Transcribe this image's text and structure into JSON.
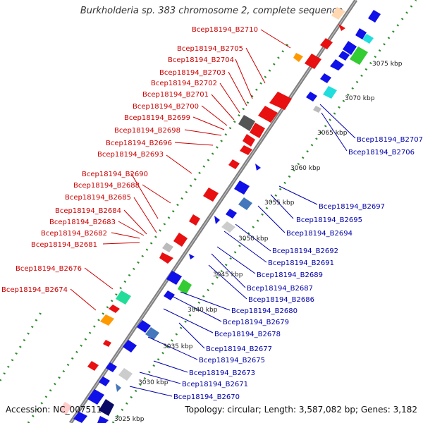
{
  "title": "Burkholderia sp. 383 chromosome 2, complete sequence",
  "footer": {
    "accession": "Accession: NC_007511",
    "summary": "Topology: circular; Length: 3,587,082 bp; Genes: 3,182"
  },
  "colors": {
    "left_labels": "#cc0000",
    "right_labels": "#0000aa",
    "backbone": "#808080",
    "ticks": "#2a8a2a"
  },
  "scale_labels": [
    "3025 kbp",
    "3030 kbp",
    "3035 kbp",
    "3040 kbp",
    "3045 kbp",
    "3050 kbp",
    "3055 kbp",
    "3060 kbp",
    "3065 kbp",
    "3070 kbp",
    "3075 kbp"
  ],
  "left_genes": [
    "Bcep18194_B2710",
    "Bcep18194_B2705",
    "Bcep18194_B2704",
    "Bcep18194_B2703",
    "Bcep18194_B2702",
    "Bcep18194_B2701",
    "Bcep18194_B2700",
    "Bcep18194_B2699",
    "Bcep18194_B2698",
    "Bcep18194_B2696",
    "Bcep18194_B2693",
    "Bcep18194_B2690",
    "Bcep18194_B2688",
    "Bcep18194_B2685",
    "Bcep18194_B2684",
    "Bcep18194_B2683",
    "Bcep18194_B2682",
    "Bcep18194_B2681",
    "Bcep18194_B2676",
    "Bcep18194_B2674"
  ],
  "right_genes": [
    "Bcep18194_B2707",
    "Bcep18194_B2706",
    "Bcep18194_B2697",
    "Bcep18194_B2695",
    "Bcep18194_B2694",
    "Bcep18194_B2692",
    "Bcep18194_B2691",
    "Bcep18194_B2689",
    "Bcep18194_B2687",
    "Bcep18194_B2686",
    "Bcep18194_B2680",
    "Bcep18194_B2679",
    "Bcep18194_B2678",
    "Bcep18194_B2677",
    "Bcep18194_B2675",
    "Bcep18194_B2673",
    "Bcep18194_B2671",
    "Bcep18194_B2670"
  ]
}
